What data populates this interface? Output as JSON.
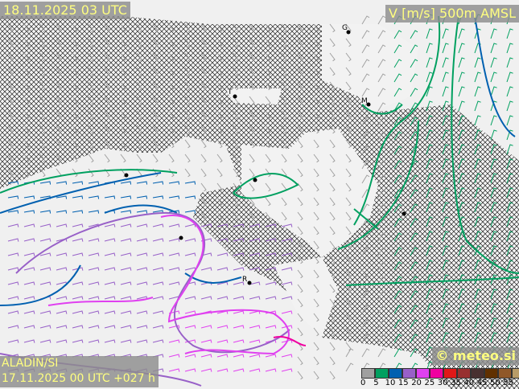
{
  "header": {
    "valid_time": "18.11.2025 03 UTC",
    "parameter": "V [m/s] 500m AMSL"
  },
  "footer": {
    "model": "ALADIN/SI",
    "run": "17.11.2025 00 UTC +027 h",
    "credit": "© meteo.si"
  },
  "legend": {
    "unit": "m/s",
    "bins": [
      {
        "label": "0",
        "color": "#a0a0a0"
      },
      {
        "label": "5",
        "color": "#00a060"
      },
      {
        "label": "10",
        "color": "#0060b0"
      },
      {
        "label": "15",
        "color": "#9860c8"
      },
      {
        "label": "20",
        "color": "#e040f0"
      },
      {
        "label": "25",
        "color": "#f000a0"
      },
      {
        "label": "30",
        "color": "#e01818"
      },
      {
        "label": "35",
        "color": "#983030"
      },
      {
        "label": "40",
        "color": "#483030"
      },
      {
        "label": "45",
        "color": "#603000"
      },
      {
        "label": "50",
        "color": "#905828"
      },
      {
        "label": "55",
        "color": "#b89c68"
      }
    ]
  },
  "map": {
    "city_labels": [
      "G",
      "T",
      "M",
      "R"
    ],
    "hatch": "terrain above 500m"
  }
}
